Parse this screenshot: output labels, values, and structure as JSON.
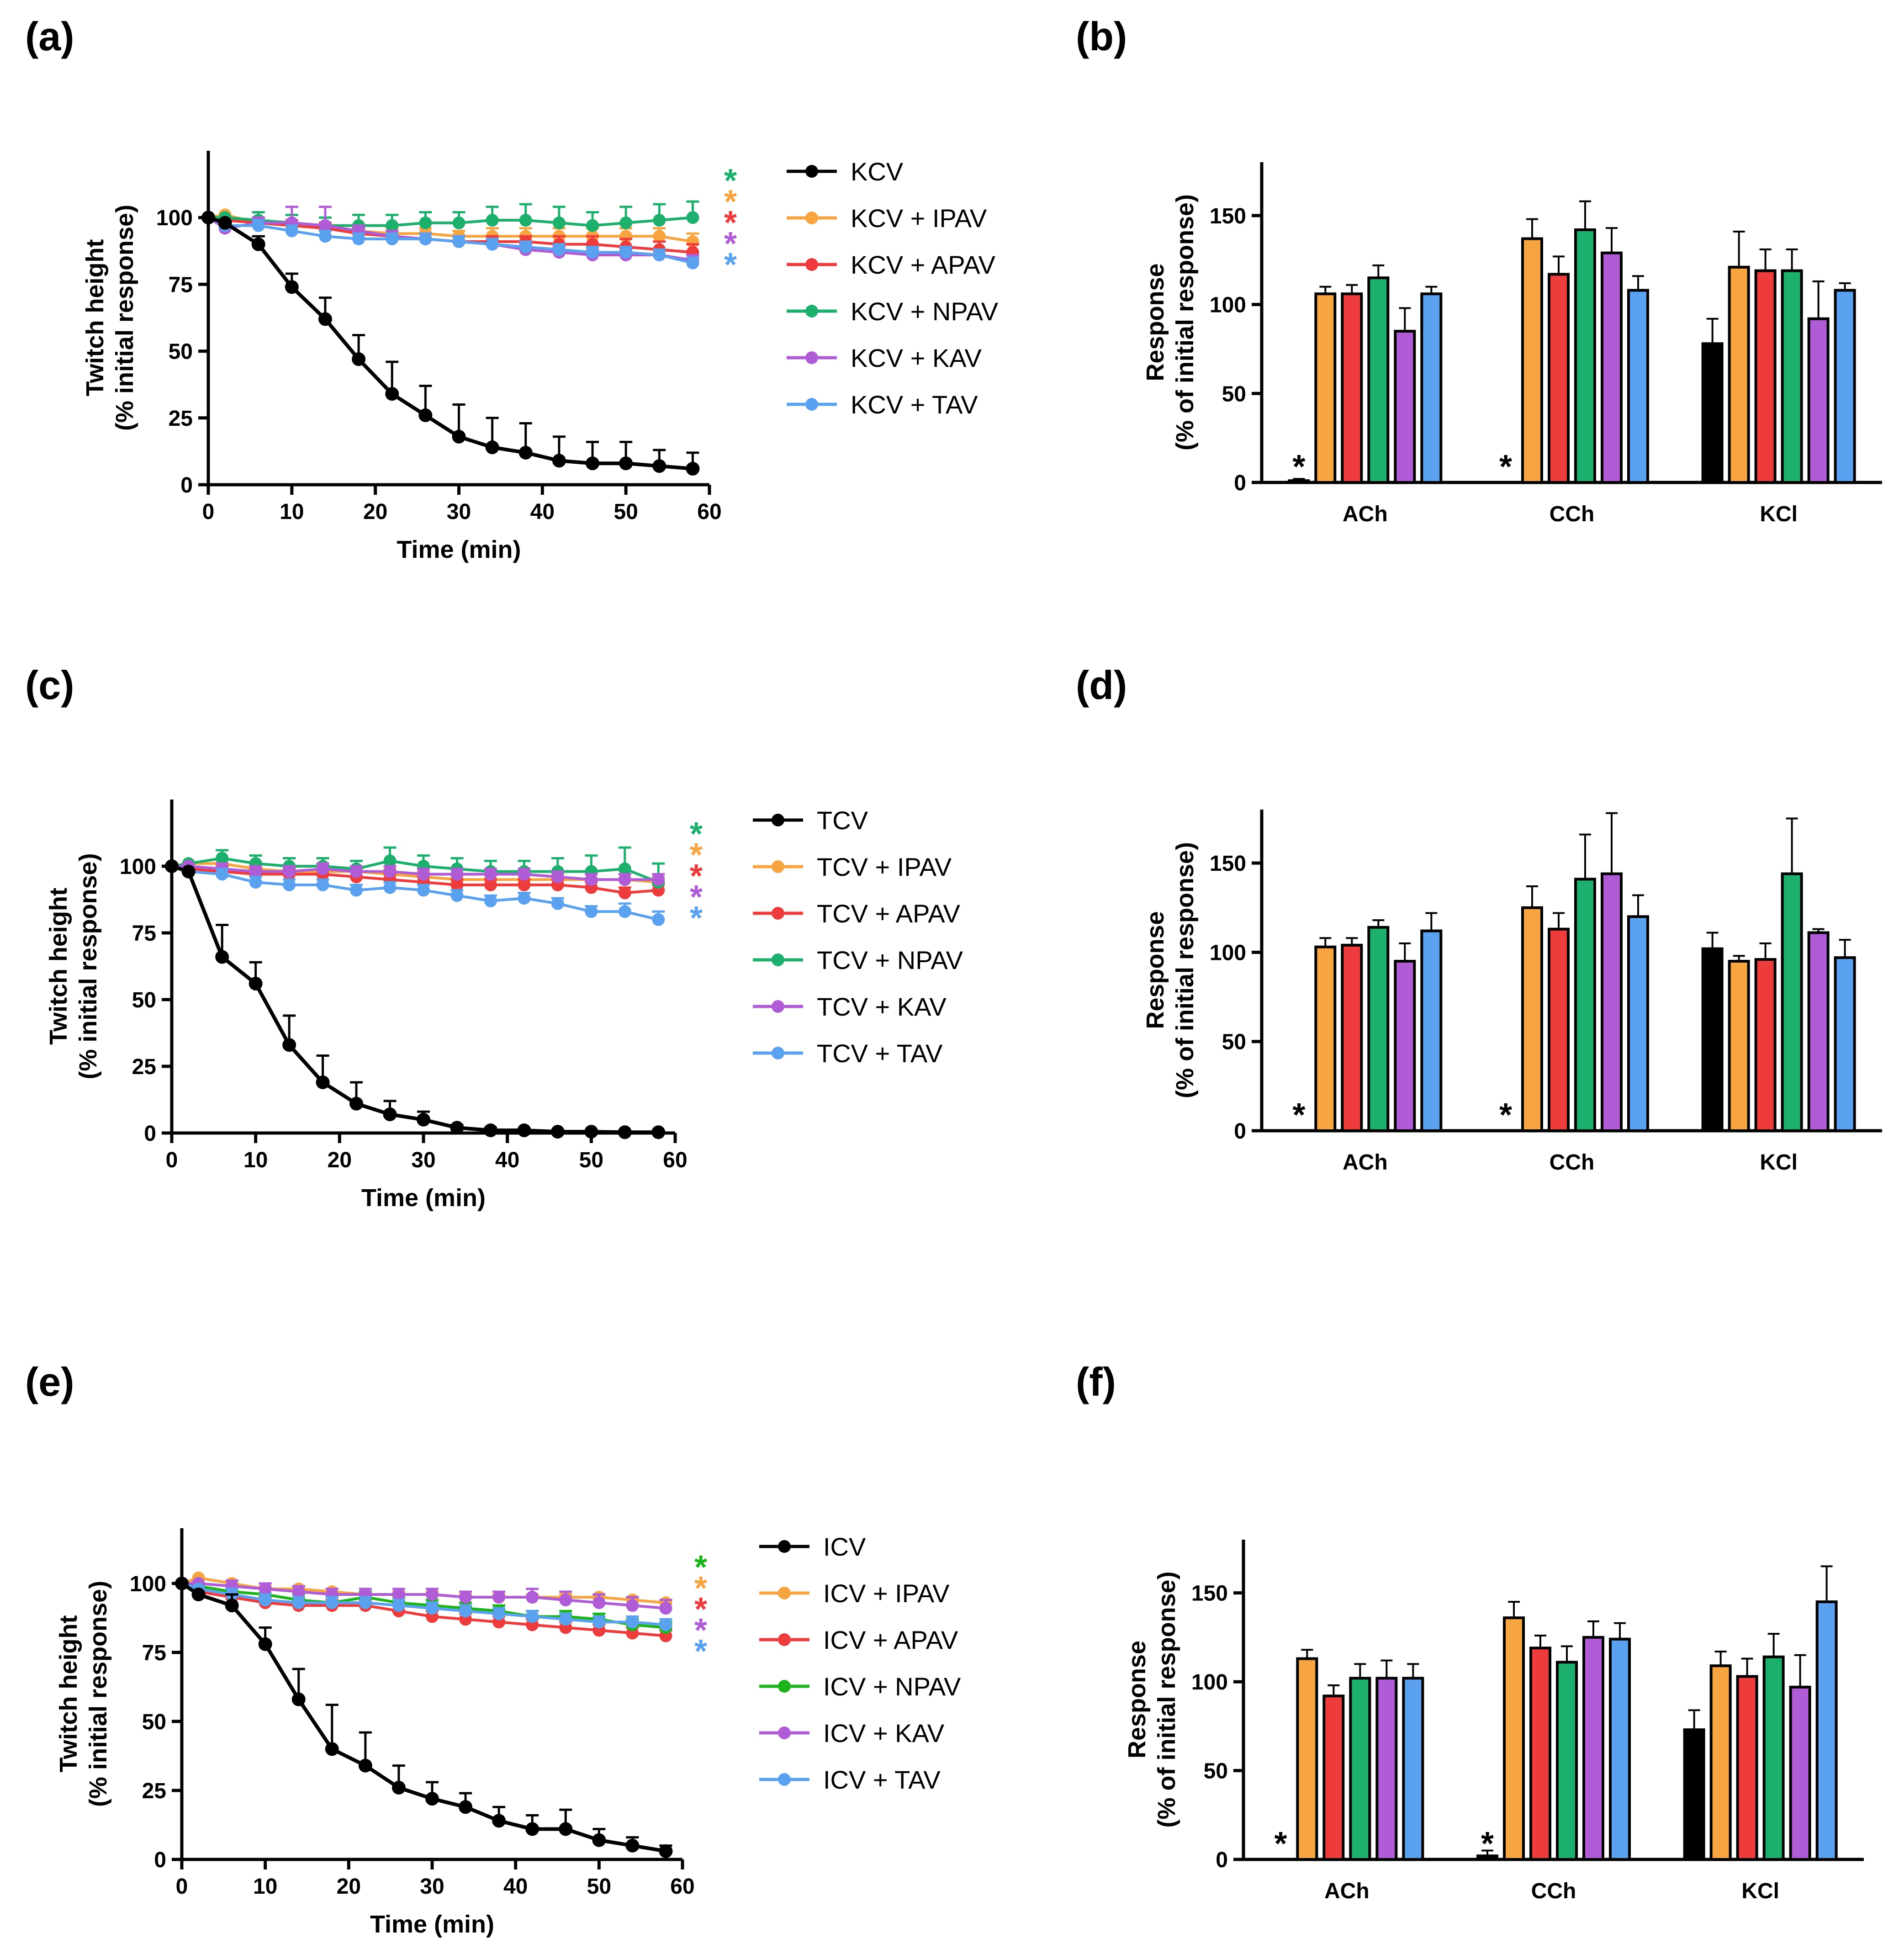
{
  "colors": {
    "black": "#000000",
    "orange": "#F7A541",
    "red": "#EE3B3B",
    "green": "#1DB06C",
    "purple": "#B05CD6",
    "blue": "#5AA2F0",
    "lime": "#1BB51B"
  },
  "line_panels": [
    {
      "label": "(a)",
      "type": "line",
      "xlabel": "Time (min)",
      "ylabel": [
        "Twitch height",
        "(% initial response)"
      ],
      "xlim": [
        0,
        60
      ],
      "ylim": [
        0,
        125
      ],
      "xticks": [
        0,
        10,
        20,
        30,
        40,
        50,
        60
      ],
      "yticks": [
        0,
        25,
        50,
        75,
        100
      ],
      "x": [
        0,
        2,
        6,
        10,
        14,
        18,
        22,
        26,
        30,
        34,
        38,
        42,
        46,
        50,
        54,
        58
      ],
      "series": [
        {
          "name": "KCV",
          "color": "#000000",
          "values": [
            100,
            98,
            90,
            74,
            62,
            47,
            34,
            26,
            18,
            14,
            12,
            9,
            8,
            8,
            7,
            6
          ],
          "errors": [
            0,
            0,
            3,
            5,
            8,
            9,
            12,
            11,
            12,
            11,
            11,
            9,
            8,
            8,
            6,
            6
          ]
        },
        {
          "name": "KCV + IPAV",
          "color": "#F7A541",
          "values": [
            100,
            101,
            98,
            97,
            96,
            95,
            94,
            94,
            93,
            93,
            93,
            93,
            93,
            93,
            93,
            91
          ],
          "errors": [
            0,
            0,
            2,
            2,
            2,
            2,
            2,
            2,
            2,
            3,
            3,
            3,
            3,
            3,
            3,
            3
          ]
        },
        {
          "name": "KCV + APAV",
          "color": "#EE3B3B",
          "values": [
            100,
            99,
            98,
            97,
            96,
            94,
            93,
            92,
            91,
            91,
            91,
            90,
            90,
            89,
            88,
            87
          ],
          "errors": [
            0,
            0,
            2,
            2,
            2,
            2,
            2,
            2,
            2,
            2,
            2,
            3,
            3,
            3,
            3,
            3
          ]
        },
        {
          "name": "KCV + NPAV",
          "color": "#1DB06C",
          "values": [
            100,
            100,
            99,
            98,
            97,
            97,
            97,
            98,
            98,
            99,
            99,
            98,
            97,
            98,
            99,
            100
          ],
          "errors": [
            0,
            0,
            3,
            3,
            3,
            4,
            4,
            4,
            4,
            5,
            6,
            6,
            5,
            6,
            6,
            6
          ]
        },
        {
          "name": "KCV + KAV",
          "color": "#B05CD6",
          "values": [
            100,
            96,
            98,
            98,
            97,
            95,
            93,
            92,
            91,
            90,
            88,
            87,
            86,
            86,
            86,
            84
          ],
          "errors": [
            0,
            0,
            2,
            6,
            7,
            2,
            2,
            2,
            2,
            2,
            2,
            2,
            2,
            2,
            2,
            2
          ]
        },
        {
          "name": "KCV + TAV",
          "color": "#5AA2F0",
          "values": [
            100,
            97,
            97,
            95,
            93,
            92,
            92,
            92,
            91,
            90,
            89,
            88,
            87,
            87,
            86,
            83
          ],
          "errors": [
            0,
            0,
            2,
            2,
            2,
            2,
            2,
            2,
            2,
            2,
            2,
            2,
            2,
            2,
            2,
            2
          ]
        }
      ],
      "stars": [
        {
          "text": "*",
          "color": "#1DB06C"
        },
        {
          "text": "*",
          "color": "#F7A541"
        },
        {
          "text": "*",
          "color": "#EE3B3B"
        },
        {
          "text": "*",
          "color": "#B05CD6"
        },
        {
          "text": "*",
          "color": "#5AA2F0"
        }
      ]
    },
    {
      "label": "(c)",
      "type": "line",
      "xlabel": "Time (min)",
      "ylabel": [
        "Twitch height",
        "(% initial response)"
      ],
      "xlim": [
        0,
        60
      ],
      "ylim": [
        0,
        125
      ],
      "xticks": [
        0,
        10,
        20,
        30,
        40,
        50,
        60
      ],
      "yticks": [
        0,
        25,
        50,
        75,
        100
      ],
      "x": [
        0,
        2,
        6,
        10,
        14,
        18,
        22,
        26,
        30,
        34,
        38,
        42,
        46,
        50,
        54,
        58
      ],
      "series": [
        {
          "name": "TCV",
          "color": "#000000",
          "values": [
            100,
            98,
            66,
            56,
            33,
            19,
            11,
            7,
            5,
            2,
            1,
            1,
            0.5,
            0.5,
            0.3,
            0.3
          ],
          "errors": [
            0,
            0,
            12,
            8,
            11,
            10,
            8,
            5,
            3,
            1,
            1,
            0.5,
            0.5,
            0.5,
            0.3,
            0.3
          ]
        },
        {
          "name": "TCV + IPAV",
          "color": "#F7A541",
          "values": [
            100,
            101,
            101,
            99,
            98,
            98,
            98,
            97,
            96,
            95,
            95,
            95,
            95,
            95,
            95,
            94
          ],
          "errors": [
            0,
            0,
            2,
            2,
            2,
            2,
            2,
            2,
            2,
            2,
            2,
            2,
            2,
            2,
            2,
            2
          ]
        },
        {
          "name": "TCV + APAV",
          "color": "#EE3B3B",
          "values": [
            100,
            99,
            98,
            97,
            97,
            97,
            96,
            95,
            94,
            93,
            93,
            93,
            93,
            92,
            90,
            91
          ],
          "errors": [
            0,
            0,
            2,
            2,
            2,
            2,
            2,
            2,
            2,
            2,
            2,
            2,
            2,
            2,
            2,
            2
          ]
        },
        {
          "name": "TCV + NPAV",
          "color": "#1DB06C",
          "values": [
            100,
            101,
            103,
            101,
            100,
            100,
            99,
            102,
            100,
            99,
            98,
            98,
            98,
            98,
            99,
            94
          ],
          "errors": [
            0,
            0,
            3,
            3,
            3,
            3,
            3,
            5,
            4,
            4,
            4,
            4,
            5,
            6,
            8,
            7
          ]
        },
        {
          "name": "TCV + KAV",
          "color": "#B05CD6",
          "values": [
            100,
            100,
            99,
            98,
            98,
            99,
            98,
            98,
            97,
            97,
            97,
            97,
            96,
            95,
            95,
            95
          ],
          "errors": [
            0,
            0,
            2,
            2,
            2,
            2,
            2,
            2,
            2,
            2,
            2,
            2,
            2,
            2,
            2,
            2
          ]
        },
        {
          "name": "TCV + TAV",
          "color": "#5AA2F0",
          "values": [
            100,
            98,
            97,
            94,
            93,
            93,
            91,
            92,
            91,
            89,
            87,
            88,
            86,
            83,
            83,
            80
          ],
          "errors": [
            0,
            0,
            2,
            2,
            2,
            2,
            2,
            2,
            2,
            2,
            2,
            2,
            2,
            2,
            3,
            3
          ]
        }
      ],
      "stars": [
        {
          "text": "*",
          "color": "#1DB06C"
        },
        {
          "text": "*",
          "color": "#F7A541"
        },
        {
          "text": "*",
          "color": "#EE3B3B"
        },
        {
          "text": "*",
          "color": "#B05CD6"
        },
        {
          "text": "*",
          "color": "#5AA2F0"
        }
      ]
    },
    {
      "label": "(e)",
      "type": "line",
      "xlabel": "Time (min)",
      "ylabel": [
        "Twitch height",
        "(% initial response)"
      ],
      "xlim": [
        0,
        60
      ],
      "ylim": [
        0,
        120
      ],
      "xticks": [
        0,
        10,
        20,
        30,
        40,
        50,
        60
      ],
      "yticks": [
        0,
        25,
        50,
        75,
        100
      ],
      "x": [
        0,
        2,
        6,
        10,
        14,
        18,
        22,
        26,
        30,
        34,
        38,
        42,
        46,
        50,
        54,
        58
      ],
      "series": [
        {
          "name": "ICV",
          "color": "#000000",
          "values": [
            100,
            96,
            92,
            78,
            58,
            40,
            34,
            26,
            22,
            19,
            14,
            11,
            11,
            7,
            5,
            3
          ],
          "errors": [
            0,
            0,
            4,
            6,
            11,
            16,
            12,
            8,
            6,
            5,
            5,
            5,
            7,
            4,
            3,
            2
          ]
        },
        {
          "name": "ICV + IPAV",
          "color": "#F7A541",
          "values": [
            100,
            102,
            100,
            98,
            98,
            97,
            96,
            96,
            96,
            95,
            95,
            95,
            95,
            95,
            94,
            93
          ],
          "errors": [
            0,
            0,
            1,
            1,
            1,
            1,
            1,
            1,
            1,
            1,
            1,
            1,
            1,
            1,
            1,
            1
          ]
        },
        {
          "name": "ICV + APAV",
          "color": "#EE3B3B",
          "values": [
            100,
            97,
            95,
            93,
            92,
            92,
            92,
            90,
            88,
            87,
            86,
            85,
            84,
            83,
            82,
            81
          ],
          "errors": [
            0,
            0,
            2,
            2,
            2,
            2,
            2,
            2,
            2,
            2,
            2,
            2,
            2,
            2,
            2,
            2
          ]
        },
        {
          "name": "ICV + NPAV",
          "color": "#1BB51B",
          "values": [
            100,
            99,
            97,
            96,
            94,
            93,
            95,
            93,
            92,
            91,
            90,
            88,
            88,
            87,
            85,
            84
          ],
          "errors": [
            0,
            0,
            2,
            2,
            2,
            2,
            2,
            2,
            2,
            2,
            2,
            2,
            2,
            2,
            2,
            2
          ]
        },
        {
          "name": "ICV + KAV",
          "color": "#B05CD6",
          "values": [
            100,
            100,
            99,
            98,
            97,
            96,
            96,
            96,
            96,
            95,
            95,
            95,
            94,
            93,
            92,
            91
          ],
          "errors": [
            0,
            0,
            2,
            2,
            2,
            2,
            2,
            2,
            2,
            2,
            2,
            3,
            3,
            3,
            3,
            3
          ]
        },
        {
          "name": "ICV + TAV",
          "color": "#5AA2F0",
          "values": [
            100,
            98,
            96,
            94,
            93,
            93,
            93,
            92,
            91,
            90,
            89,
            88,
            87,
            86,
            86,
            85
          ],
          "errors": [
            0,
            0,
            2,
            2,
            2,
            2,
            2,
            2,
            2,
            2,
            2,
            2,
            2,
            2,
            2,
            2
          ]
        }
      ],
      "stars": [
        {
          "text": "*",
          "color": "#1BB51B"
        },
        {
          "text": "*",
          "color": "#F7A541"
        },
        {
          "text": "*",
          "color": "#EE3B3B"
        },
        {
          "text": "*",
          "color": "#B05CD6"
        },
        {
          "text": "*",
          "color": "#5AA2F0"
        }
      ]
    }
  ],
  "bar_panels": [
    {
      "label": "(b)",
      "type": "bar",
      "ylabel": [
        "Response",
        "(% of initial response)"
      ],
      "ylim": [
        0,
        180
      ],
      "yticks": [
        0,
        50,
        100,
        150
      ],
      "categories": [
        "ACh",
        "CCh",
        "KCl"
      ],
      "series_colors": [
        "#000000",
        "#F7A541",
        "#EE3B3B",
        "#1DB06C",
        "#B05CD6",
        "#5AA2F0"
      ],
      "values": [
        [
          1,
          106,
          106,
          115,
          85,
          106
        ],
        [
          0,
          137,
          117,
          142,
          129,
          108
        ],
        [
          78,
          121,
          119,
          119,
          92,
          108
        ]
      ],
      "errors": [
        [
          1,
          4,
          5,
          7,
          13,
          4
        ],
        [
          0,
          11,
          10,
          16,
          14,
          8
        ],
        [
          14,
          20,
          12,
          12,
          21,
          4
        ]
      ],
      "stars": [
        {
          "text": "*",
          "group": 0
        },
        {
          "text": "*",
          "group": 1
        }
      ]
    },
    {
      "label": "(d)",
      "type": "bar",
      "ylabel": [
        "Response",
        "(% of initial response)"
      ],
      "ylim": [
        0,
        180
      ],
      "yticks": [
        0,
        50,
        100,
        150
      ],
      "categories": [
        "ACh",
        "CCh",
        "KCl"
      ],
      "series_colors": [
        "#000000",
        "#F7A541",
        "#EE3B3B",
        "#1DB06C",
        "#B05CD6",
        "#5AA2F0"
      ],
      "values": [
        [
          0,
          103,
          104,
          114,
          95,
          112
        ],
        [
          0,
          125,
          113,
          141,
          144,
          120
        ],
        [
          102,
          95,
          96,
          144,
          111,
          97
        ]
      ],
      "errors": [
        [
          0,
          5,
          4,
          4,
          10,
          10
        ],
        [
          0,
          12,
          9,
          25,
          34,
          12
        ],
        [
          9,
          3,
          9,
          31,
          2,
          10
        ]
      ],
      "stars": [
        {
          "text": "*",
          "group": 0
        },
        {
          "text": "*",
          "group": 1
        }
      ]
    },
    {
      "label": "(f)",
      "type": "bar",
      "ylabel": [
        "Response",
        "(% of initial response)"
      ],
      "ylim": [
        0,
        180
      ],
      "yticks": [
        0,
        50,
        100,
        150
      ],
      "categories": [
        "ACh",
        "CCh",
        "KCl"
      ],
      "series_colors": [
        "#000000",
        "#F7A541",
        "#EE3B3B",
        "#1DB06C",
        "#B05CD6",
        "#5AA2F0"
      ],
      "values": [
        [
          0,
          113,
          92,
          102,
          102,
          102
        ],
        [
          2,
          136,
          119,
          111,
          125,
          124
        ],
        [
          73,
          109,
          103,
          114,
          97,
          145
        ]
      ],
      "errors": [
        [
          0,
          5,
          6,
          8,
          10,
          8
        ],
        [
          3,
          9,
          7,
          9,
          9,
          9
        ],
        [
          11,
          8,
          10,
          13,
          18,
          20
        ]
      ],
      "stars": [
        {
          "text": "*",
          "group": 0
        },
        {
          "text": "*",
          "group": 1
        }
      ]
    }
  ]
}
